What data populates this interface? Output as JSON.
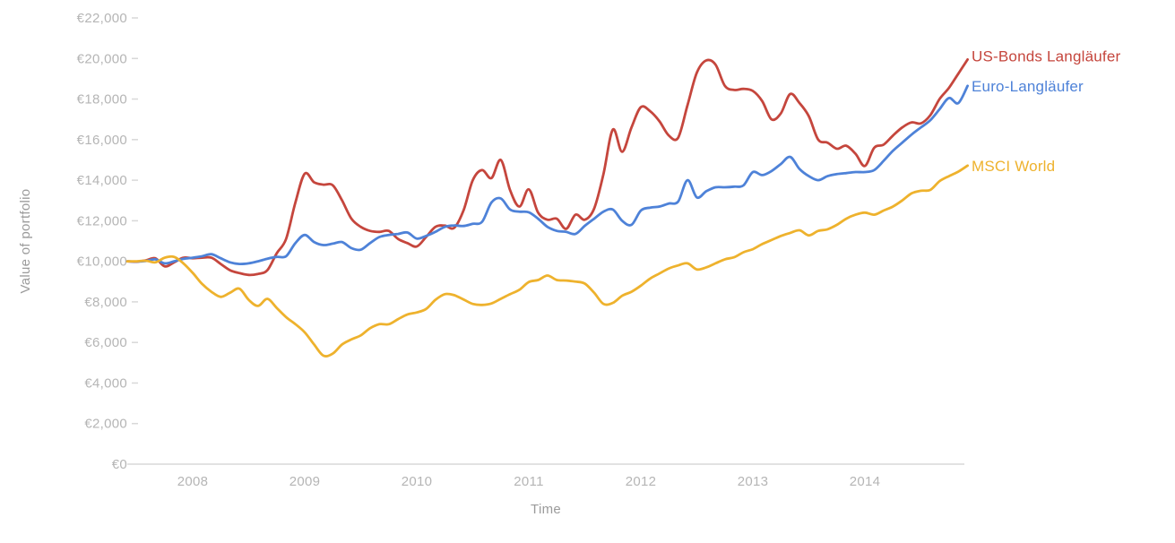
{
  "chart_data": {
    "type": "line",
    "title": "",
    "xlabel": "Time",
    "ylabel": "Value of portfolio",
    "currency_prefix": "€",
    "ylim": [
      0,
      22000
    ],
    "grid": false,
    "legend_position": "right-of-line-ends",
    "x_start_year_fraction": 2007.4167,
    "x_step_years": 0.0833333,
    "x_ticks": [
      {
        "v": 2008,
        "label": "2008"
      },
      {
        "v": 2009,
        "label": "2009"
      },
      {
        "v": 2010,
        "label": "2010"
      },
      {
        "v": 2011,
        "label": "2011"
      },
      {
        "v": 2012,
        "label": "2012"
      },
      {
        "v": 2013,
        "label": "2013"
      },
      {
        "v": 2014,
        "label": "2014"
      }
    ],
    "y_ticks": [
      {
        "v": 0,
        "label": "€0"
      },
      {
        "v": 2000,
        "label": "€2,000"
      },
      {
        "v": 4000,
        "label": "€4,000"
      },
      {
        "v": 6000,
        "label": "€6,000"
      },
      {
        "v": 8000,
        "label": "€8,000"
      },
      {
        "v": 10000,
        "label": "€10,000"
      },
      {
        "v": 12000,
        "label": "€12,000"
      },
      {
        "v": 14000,
        "label": "€14,000"
      },
      {
        "v": 16000,
        "label": "€16,000"
      },
      {
        "v": 18000,
        "label": "€18,000"
      },
      {
        "v": 20000,
        "label": "€20,000"
      },
      {
        "v": 22000,
        "label": "€22,000"
      }
    ],
    "axis_colors": {
      "tick_text": "#b5b5b5",
      "axis_title": "#9b9b9b",
      "baseline": "#e2e2e2",
      "tick_dash": "#d8d8d8"
    },
    "series": [
      {
        "name": "US-Bonds Langläufer",
        "color": "#c5463d",
        "values": [
          10000,
          9980,
          10050,
          10150,
          9750,
          9950,
          10180,
          10150,
          10180,
          10180,
          9870,
          9560,
          9420,
          9330,
          9380,
          9560,
          10400,
          11100,
          12900,
          14320,
          13900,
          13780,
          13750,
          13000,
          12100,
          11700,
          11500,
          11450,
          11500,
          11100,
          10900,
          10730,
          11200,
          11700,
          11760,
          11650,
          12500,
          14000,
          14500,
          14100,
          15000,
          13500,
          12700,
          13550,
          12400,
          12050,
          12100,
          11600,
          12300,
          12050,
          12600,
          14300,
          16500,
          15400,
          16600,
          17600,
          17400,
          16900,
          16200,
          16100,
          17700,
          19300,
          19900,
          19700,
          18650,
          18450,
          18500,
          18400,
          17900,
          17000,
          17300,
          18250,
          17800,
          17150,
          16000,
          15850,
          15550,
          15700,
          15300,
          14700,
          15600,
          15750,
          16200,
          16600,
          16850,
          16800,
          17200,
          18000,
          18550,
          19250,
          19950
        ]
      },
      {
        "name": "Euro-Langläufer",
        "color": "#4e82d8",
        "values": [
          10000,
          9990,
          10020,
          10100,
          9900,
          10000,
          10120,
          10180,
          10250,
          10350,
          10150,
          9950,
          9870,
          9900,
          10000,
          10130,
          10220,
          10250,
          10900,
          11300,
          10950,
          10800,
          10870,
          10950,
          10650,
          10570,
          10900,
          11200,
          11300,
          11350,
          11420,
          11120,
          11250,
          11450,
          11700,
          11770,
          11740,
          11850,
          11950,
          12900,
          13100,
          12550,
          12450,
          12420,
          12100,
          11700,
          11500,
          11450,
          11350,
          11750,
          12100,
          12450,
          12550,
          12000,
          11800,
          12500,
          12650,
          12700,
          12850,
          12950,
          14000,
          13150,
          13450,
          13650,
          13650,
          13680,
          13750,
          14400,
          14250,
          14450,
          14800,
          15150,
          14550,
          14200,
          14000,
          14200,
          14300,
          14350,
          14400,
          14400,
          14500,
          14950,
          15450,
          15850,
          16250,
          16600,
          16950,
          17500,
          18050,
          17800,
          18650
        ]
      },
      {
        "name": "MSCI World",
        "color": "#eeb22d",
        "values": [
          10000,
          10000,
          10030,
          9950,
          10180,
          10220,
          9900,
          9430,
          8890,
          8500,
          8250,
          8450,
          8650,
          8100,
          7800,
          8150,
          7700,
          7250,
          6900,
          6500,
          5900,
          5350,
          5450,
          5900,
          6150,
          6350,
          6700,
          6900,
          6900,
          7150,
          7380,
          7480,
          7650,
          8100,
          8380,
          8330,
          8120,
          7900,
          7850,
          7920,
          8150,
          8380,
          8600,
          8980,
          9080,
          9300,
          9080,
          9050,
          9000,
          8900,
          8450,
          7900,
          7950,
          8300,
          8500,
          8800,
          9150,
          9400,
          9650,
          9800,
          9900,
          9600,
          9700,
          9900,
          10100,
          10200,
          10450,
          10600,
          10850,
          11050,
          11250,
          11400,
          11530,
          11280,
          11500,
          11580,
          11800,
          12100,
          12300,
          12400,
          12300,
          12500,
          12700,
          13000,
          13350,
          13480,
          13520,
          13950,
          14200,
          14420,
          14720
        ]
      }
    ]
  }
}
